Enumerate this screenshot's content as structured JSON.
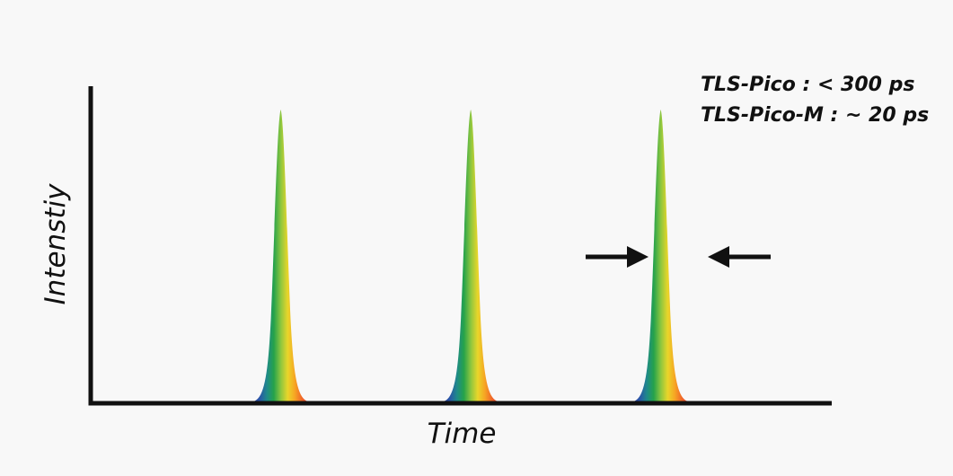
{
  "chart_data": {
    "type": "line",
    "title": "",
    "xlabel": "Time",
    "ylabel": "Intenstiy",
    "grid": false,
    "annotations": [
      "TLS-Pico : < 300 ps",
      "TLS-Pico-M : ~ 20 ps"
    ],
    "pulses": [
      {
        "center": 1,
        "amplitude": 1
      },
      {
        "center": 2,
        "amplitude": 1
      },
      {
        "center": 3,
        "amplitude": 1
      }
    ],
    "xlim": [
      0,
      3.9
    ],
    "ylim": [
      0,
      1.08
    ],
    "pulse_fill_colors": [
      "#23399a",
      "#2a57a7",
      "#1f8a8a",
      "#25a24a",
      "#8cc63f",
      "#e8d62a",
      "#f6a623",
      "#f06a28",
      "#e23a2e"
    ],
    "width_marker_pulse_index": 2
  }
}
